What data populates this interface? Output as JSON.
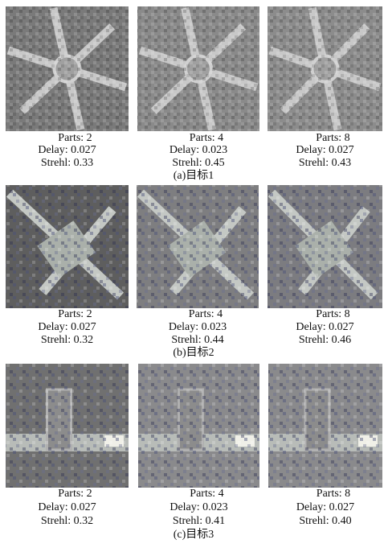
{
  "figure": {
    "rows": [
      {
        "caption": "(a)目标1",
        "panels": [
          {
            "parts": "Parts: 2",
            "delay": "Delay: 0.027",
            "strehl": "Strehl: 0.33"
          },
          {
            "parts": "Parts: 4",
            "delay": "Delay: 0.023",
            "strehl": "Strehl: 0.45"
          },
          {
            "parts": "Parts: 8",
            "delay": "Delay: 0.027",
            "strehl": "Strehl: 0.43"
          }
        ]
      },
      {
        "caption": "(b)目标2",
        "panels": [
          {
            "parts": "Parts: 2",
            "delay": "Delay: 0.027",
            "strehl": "Strehl: 0.32"
          },
          {
            "parts": "Parts: 4",
            "delay": "Delay: 0.023",
            "strehl": "Strehl: 0.44"
          },
          {
            "parts": "Parts: 8",
            "delay": "Delay: 0.027",
            "strehl": "Strehl: 0.46"
          }
        ]
      },
      {
        "caption": "(c)目标3",
        "panels": [
          {
            "parts": "Parts: 2",
            "delay": "Delay: 0.027",
            "strehl": "Strehl: 0.32"
          },
          {
            "parts": "Parts: 4",
            "delay": "Delay: 0.023",
            "strehl": "Strehl: 0.41"
          },
          {
            "parts": "Parts: 8",
            "delay": "Delay: 0.027",
            "strehl": "Strehl: 0.40"
          }
        ]
      }
    ]
  }
}
